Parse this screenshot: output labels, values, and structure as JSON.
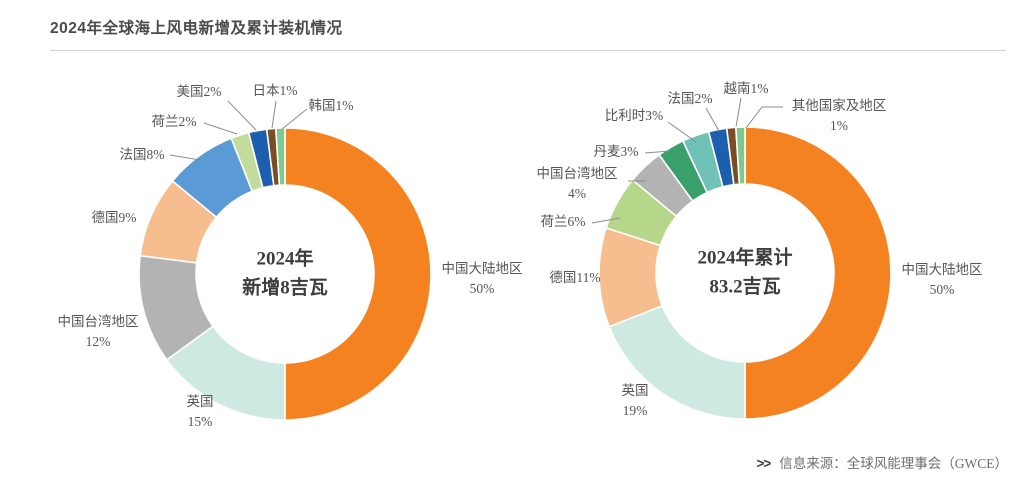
{
  "header": {
    "title": "2024年全球海上风电新增及累计装机情况"
  },
  "footer": {
    "chevron": ">>",
    "source_text": "信息来源：全球风能理事会（GWCE）"
  },
  "chart_data": [
    {
      "type": "pie",
      "subtype": "donut",
      "title": "2024年新增",
      "center_lines": [
        "2024年",
        "新增8吉瓦"
      ],
      "total_gw": 8,
      "unit": "吉瓦",
      "start_angle_deg": 0,
      "direction": "clockwise",
      "slices": [
        {
          "name": "中国大陆地区",
          "pct": 50,
          "color": "#F58220",
          "label_lines": [
            "中国大陆地区",
            "50%"
          ]
        },
        {
          "name": "英国",
          "pct": 15,
          "color": "#CDE9E1",
          "label_lines": [
            "英国",
            "15%"
          ]
        },
        {
          "name": "中国台湾地区",
          "pct": 12,
          "color": "#B3B3B3",
          "label_lines": [
            "中国台湾地区",
            "12%"
          ]
        },
        {
          "name": "德国",
          "pct": 9,
          "color": "#F6BE8E",
          "label_lines": [
            "德国9%"
          ]
        },
        {
          "name": "法国",
          "pct": 8,
          "color": "#5B9BD5",
          "label_lines": [
            "法国8%"
          ]
        },
        {
          "name": "荷兰",
          "pct": 2,
          "color": "#C4DC9B",
          "label_lines": [
            "荷兰2%"
          ]
        },
        {
          "name": "美国",
          "pct": 2,
          "color": "#1C5FAF",
          "label_lines": [
            "美国2%"
          ]
        },
        {
          "name": "日本",
          "pct": 1,
          "color": "#7B4D26",
          "label_lines": [
            "日本1%"
          ]
        },
        {
          "name": "韩国",
          "pct": 1,
          "color": "#7DC98E",
          "label_lines": [
            "韩国1%"
          ]
        }
      ]
    },
    {
      "type": "pie",
      "subtype": "donut",
      "title": "2024年累计",
      "center_lines": [
        "2024年累计",
        "83.2吉瓦"
      ],
      "total_gw": 83.2,
      "unit": "吉瓦",
      "start_angle_deg": 0,
      "direction": "clockwise",
      "slices": [
        {
          "name": "中国大陆地区",
          "pct": 50,
          "color": "#F58220",
          "label_lines": [
            "中国大陆地区",
            "50%"
          ]
        },
        {
          "name": "英国",
          "pct": 19,
          "color": "#CDE9E1",
          "label_lines": [
            "英国",
            "19%"
          ]
        },
        {
          "name": "德国",
          "pct": 11,
          "color": "#F6BE8E",
          "label_lines": [
            "德国11%"
          ]
        },
        {
          "name": "荷兰",
          "pct": 6,
          "color": "#B4D78A",
          "label_lines": [
            "荷兰6%"
          ]
        },
        {
          "name": "中国台湾地区",
          "pct": 4,
          "color": "#B3B3B3",
          "label_lines": [
            "中国台湾地区",
            "4%"
          ]
        },
        {
          "name": "丹麦",
          "pct": 3,
          "color": "#3AA06B",
          "label_lines": [
            "丹麦3%"
          ]
        },
        {
          "name": "比利时",
          "pct": 3,
          "color": "#70C1B8",
          "label_lines": [
            "比利时3%"
          ]
        },
        {
          "name": "法国",
          "pct": 2,
          "color": "#1C5FAF",
          "label_lines": [
            "法国2%"
          ]
        },
        {
          "name": "越南",
          "pct": 1,
          "color": "#7B4D26",
          "label_lines": [
            "越南1%"
          ]
        },
        {
          "name": "其他国家及地区",
          "pct": 1,
          "color": "#7DC98E",
          "label_lines": [
            "其他国家及地区",
            "1%"
          ]
        }
      ]
    }
  ]
}
